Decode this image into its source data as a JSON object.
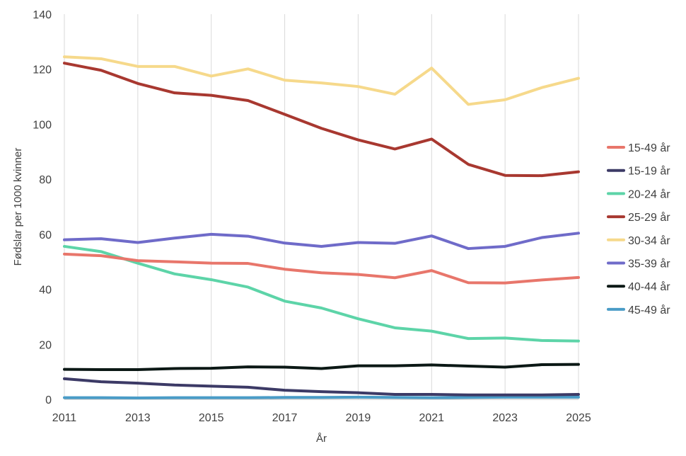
{
  "chart_data": {
    "type": "line",
    "title": "",
    "xlabel": "År",
    "ylabel": "Fødslar per 1000 kvinner",
    "x": [
      2011,
      2012,
      2013,
      2014,
      2015,
      2016,
      2017,
      2018,
      2019,
      2020,
      2021,
      2022,
      2023,
      2024,
      2025
    ],
    "xticks": [
      "2011",
      "2013",
      "2015",
      "2017",
      "2019",
      "2021",
      "2023",
      "2025"
    ],
    "yticks": [
      "0",
      "20",
      "40",
      "60",
      "80",
      "100",
      "120",
      "140"
    ],
    "xlim": [
      2011,
      2025
    ],
    "ylim": [
      0,
      140
    ],
    "grid": "vertical",
    "legend_position": "right",
    "series": [
      {
        "name": "15-49 år",
        "color": "#e8766b",
        "values": [
          52.8,
          52.2,
          50.4,
          50.0,
          49.5,
          49.4,
          47.3,
          46.0,
          45.4,
          44.2,
          46.8,
          42.4,
          42.3,
          43.4,
          44.3
        ]
      },
      {
        "name": "15-19 år",
        "color": "#3c3a66",
        "values": [
          7.5,
          6.4,
          5.9,
          5.2,
          4.8,
          4.4,
          3.3,
          2.8,
          2.4,
          1.8,
          1.8,
          1.6,
          1.6,
          1.6,
          1.8
        ]
      },
      {
        "name": "20-24 år",
        "color": "#5dd4a8",
        "values": [
          55.6,
          53.7,
          49.5,
          45.6,
          43.5,
          40.8,
          35.7,
          33.2,
          29.3,
          26.0,
          24.8,
          22.1,
          22.3,
          21.4,
          21.2
        ]
      },
      {
        "name": "25-29 år",
        "color": "#a83830",
        "values": [
          122.2,
          119.6,
          114.8,
          111.4,
          110.5,
          108.6,
          103.6,
          98.5,
          94.3,
          91.0,
          94.6,
          85.4,
          81.4,
          81.3,
          82.7
        ]
      },
      {
        "name": "30-34 år",
        "color": "#f6d98b",
        "values": [
          124.5,
          123.8,
          121.0,
          121.0,
          117.5,
          120.1,
          116.0,
          115.0,
          113.7,
          110.9,
          120.4,
          107.2,
          108.9,
          113.3,
          116.7
        ]
      },
      {
        "name": "35-39 år",
        "color": "#6f6bc9",
        "values": [
          58.0,
          58.4,
          57.0,
          58.6,
          60.0,
          59.3,
          56.8,
          55.6,
          57.0,
          56.7,
          59.4,
          54.8,
          55.6,
          58.8,
          60.4
        ]
      },
      {
        "name": "40-44 år",
        "color": "#0b1815",
        "values": [
          10.9,
          10.8,
          10.8,
          11.2,
          11.3,
          11.8,
          11.7,
          11.2,
          12.2,
          12.2,
          12.5,
          12.1,
          11.7,
          12.6,
          12.7
        ]
      },
      {
        "name": "45-49 år",
        "color": "#4a9cc7",
        "values": [
          0.6,
          0.6,
          0.5,
          0.6,
          0.6,
          0.6,
          0.7,
          0.7,
          0.8,
          0.7,
          0.6,
          0.7,
          0.8,
          0.8,
          0.8
        ]
      }
    ]
  }
}
